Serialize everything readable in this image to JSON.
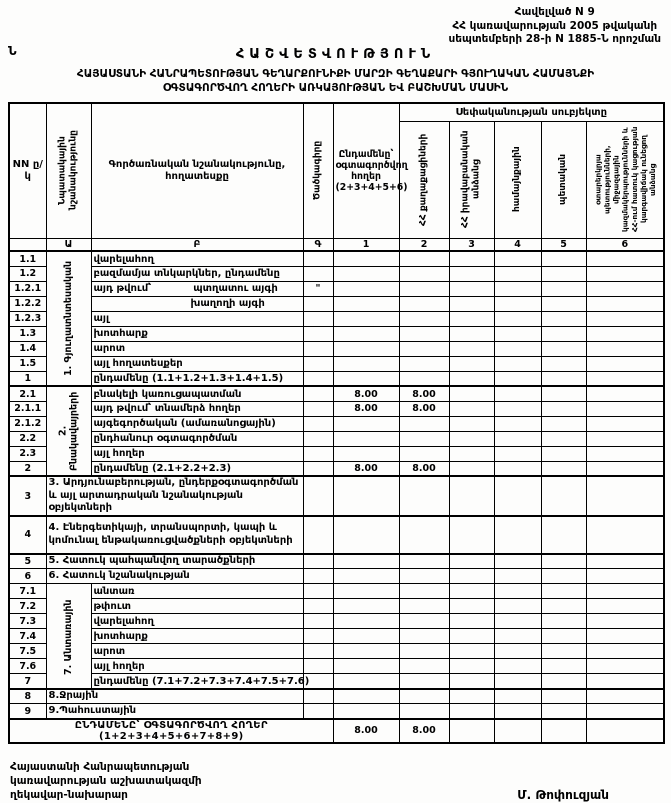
{
  "doc": {
    "appendix": [
      "Հավելված N  9",
      "ՀՀ կառավարության 2005 թվականի",
      "սեպտեմբերի 28-ի N 1885-Ն որոշման"
    ],
    "stray_mark": "Ն",
    "title": "ՀԱՇՎԵՏՎՈՒԹՅՈՒՆ",
    "subtitle1": "ՀԱՅԱՍՏԱՆԻ ՀԱՆՐԱՊԵՏՈՒԹՅԱՆ ԳԵՂԱՐՔՈՒՆԻՔԻ ՄԱՐԶԻ ԳԵՂԱՔԱՐԻ ԳՅՈՒՂԱԿԱՆ ՀԱՄԱՅՆՔԻ",
    "subtitle2": "ՕԳՏԱԳՈՐԾՎՈՂ ՀՈՂԵՐԻ ԱՌԿԱՅՈՒԹՅԱՆ ԵՎ ԲԱՇԽՄԱՆ ՄԱՍԻՆ"
  },
  "table": {
    "headers": {
      "nn": "NN ը/կ",
      "purpose": "Նպատակային նշանակությունը",
      "functional": "Գործառնական նշանակությունը, հողատեսքը",
      "code": "Ծածկագիրը",
      "total": "Ընդամենը՝ օգտագործվող հողեր (2+3+4+5+6)",
      "ownership_group": "Սեփականության սուբյեկտը",
      "subjects": [
        "ՀՀ քաղաքացիների",
        "ՀՀ իրավաբանական անձանց",
        "համայնքային",
        "պետական",
        "օտարերկրյա պետությունների, միջազգային կազմակերպությունների և ՀՀ-ում հատուկ կացության կարգավիճակ ունեցող անձանց"
      ],
      "index": [
        "",
        "Ա",
        "Բ",
        "Գ",
        "1",
        "2",
        "3",
        "4",
        "5",
        "6"
      ]
    },
    "rows": [
      {
        "nn": "1.1",
        "kind": "g",
        "label": "վարելահող",
        "group": "1. Գյուղատնտեսական",
        "group_span": 9
      },
      {
        "nn": "1.2",
        "kind": "g",
        "label": "բազմամյա տնկարկներ, ընդամենը"
      },
      {
        "nn": "1.2.1",
        "kind": "g",
        "label": "այդ թվում՝",
        "label2": "պտղատու այգի",
        "code": "\""
      },
      {
        "nn": "1.2.2",
        "kind": "g",
        "label": "խաղողի այգի",
        "indent": true
      },
      {
        "nn": "1.2.3",
        "kind": "g",
        "label": "այլ"
      },
      {
        "nn": "1.3",
        "kind": "g",
        "label": "խոտհարք"
      },
      {
        "nn": "1.4",
        "kind": "g",
        "label": "արոտ"
      },
      {
        "nn": "1.5",
        "kind": "g",
        "label": "այլ հողատեսքեր"
      },
      {
        "nn": "1",
        "kind": "g",
        "label": "ընդամենը (1.1+1.2+1.3+1.4+1.5)"
      },
      {
        "nn": "2.1",
        "kind": "g",
        "label": "բնակելի կառուցապատման",
        "group": "2. Բնակավայրերի",
        "group_span": 6,
        "thick": true,
        "v1": "8.00",
        "v2": "8.00"
      },
      {
        "nn": "2.1.1",
        "kind": "g",
        "label": "այդ թվում՝ տնամերձ հողեր",
        "v1": "8.00",
        "v2": "8.00"
      },
      {
        "nn": "2.1.2",
        "kind": "g",
        "label": "այգեգործական (ամառանոցային)"
      },
      {
        "nn": "2.2",
        "kind": "g",
        "label": "ընդհանուր օգտագործման"
      },
      {
        "nn": "2.3",
        "kind": "g",
        "label": "այլ հողեր"
      },
      {
        "nn": "2",
        "kind": "g",
        "label": "ընդամենը (2.1+2.2+2.3)",
        "v1": "8.00",
        "v2": "8.00"
      },
      {
        "nn": "3",
        "kind": "wide",
        "label": "3. Արդյունաբերության, ընդերքօգտագործման  և այլ արտադրական նշանակության օբյեկտների",
        "thick": true,
        "tall": true
      },
      {
        "nn": "4",
        "kind": "wide",
        "label": "4. Էներգետիկայի, տրանսպորտի, կապի և կոմունալ ենթակառուցվածքների օբյեկտների",
        "thick": true,
        "tall": true
      },
      {
        "nn": "5",
        "kind": "wide",
        "label": "5. Հատուկ պահպանվող տարածքների",
        "thick": true
      },
      {
        "nn": "6",
        "kind": "wide",
        "label": "6. Հատուկ նշանակության"
      },
      {
        "nn": "7.1",
        "kind": "g",
        "label": "անտառ",
        "group": "7. Անտառային",
        "group_span": 7
      },
      {
        "nn": "7.2",
        "kind": "g",
        "label": "թփուտ"
      },
      {
        "nn": "7.3",
        "kind": "g",
        "label": "վարելահող"
      },
      {
        "nn": "7.4",
        "kind": "g",
        "label": "խոտհարք"
      },
      {
        "nn": "7.5",
        "kind": "g",
        "label": "արոտ"
      },
      {
        "nn": "7.6",
        "kind": "g",
        "label": "այլ հողեր"
      },
      {
        "nn": "7",
        "kind": "g",
        "label": "ընդամենը (7.1+7.2+7.3+7.4+7.5+7.6)"
      },
      {
        "nn": "8",
        "kind": "wide",
        "label": "8.Ջրային",
        "thick": true
      },
      {
        "nn": "9",
        "kind": "wide",
        "label": "9.Պահուստային"
      },
      {
        "kind": "total",
        "label": "ԸՆԴԱՄԵՆԸ՝ ՕԳՏԱԳՈՐԾՎՈՂ ՀՈՂԵՐ (1+2+3+4+5+6+7+8+9)",
        "v1": "8.00",
        "v2": "8.00"
      }
    ]
  },
  "footer": {
    "lines": [
      "Հայաստանի Հանրապետության",
      "կառավարության աշխատակազմի",
      "ղեկավար-նախարար"
    ],
    "signature": "Մ. Թոփուզյան"
  }
}
